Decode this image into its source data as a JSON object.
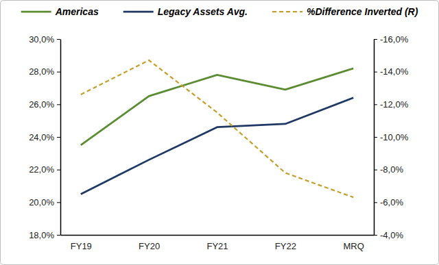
{
  "chart_data": {
    "type": "line",
    "categories": [
      "FY19",
      "FY20",
      "FY21",
      "FY22",
      "MRQ"
    ],
    "series": [
      {
        "name": "Americas",
        "color": "#5b8c32",
        "line_style": "solid",
        "values": [
          23.5,
          26.5,
          27.8,
          26.9,
          28.2
        ]
      },
      {
        "name": "Legacy Assets Avg.",
        "color": "#203864",
        "line_style": "solid",
        "values": [
          20.5,
          22.6,
          24.6,
          24.8,
          26.4
        ]
      },
      {
        "name": "%Difference Inverted (R)",
        "color": "#c5a02c",
        "line_style": "dashed",
        "axis": "y2",
        "values": [
          -12.6,
          -14.7,
          -11.5,
          -7.8,
          -6.3
        ]
      }
    ],
    "ylim": [
      18,
      30
    ],
    "yticks": [
      {
        "value": 18,
        "label": "18,0%"
      },
      {
        "value": 20,
        "label": "20,0%"
      },
      {
        "value": 22,
        "label": "22,0%"
      },
      {
        "value": 24,
        "label": "24,0%"
      },
      {
        "value": 26,
        "label": "26,0%"
      },
      {
        "value": 28,
        "label": "28,0%"
      },
      {
        "value": 30,
        "label": "30,0%"
      }
    ],
    "y2lim": [
      -4,
      -16
    ],
    "y2ticks": [
      {
        "value": -4,
        "label": "-4,0%"
      },
      {
        "value": -6,
        "label": "-6,0%"
      },
      {
        "value": -8,
        "label": "-8,0%"
      },
      {
        "value": -10,
        "label": "-10,0%"
      },
      {
        "value": -12,
        "label": "-12,0%"
      },
      {
        "value": -14,
        "label": "-14,0%"
      },
      {
        "value": -16,
        "label": "-16,0%"
      }
    ],
    "grid": false,
    "legend": "top"
  }
}
